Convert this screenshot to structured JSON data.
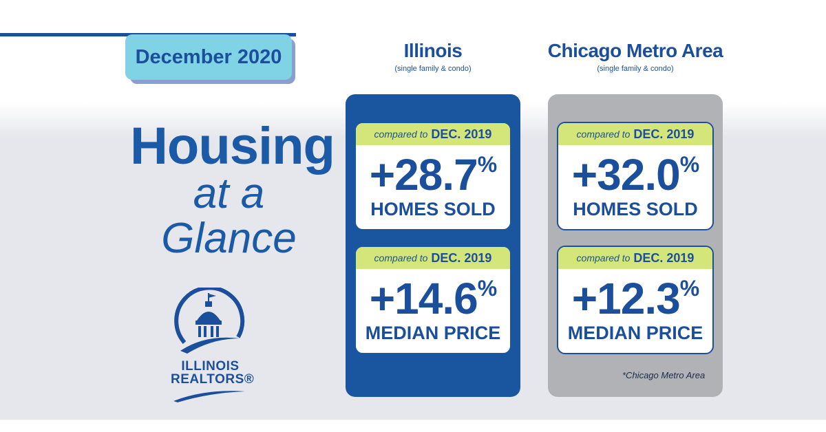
{
  "date_label": "December 2020",
  "hero": {
    "line1": "Housing",
    "line2": "at a",
    "line3": "Glance"
  },
  "logo": {
    "line1": "ILLINOIS",
    "line2": "REALTORS®"
  },
  "columns": [
    {
      "name": "Illinois",
      "subtitle": "(single family & condo)",
      "cards": [
        {
          "compare_label": "compared to",
          "compare_period": "DEC. 2019",
          "value": "+28.7",
          "unit": "%",
          "metric": "HOMES SOLD"
        },
        {
          "compare_label": "compared to",
          "compare_period": "DEC. 2019",
          "value": "+14.6",
          "unit": "%",
          "metric": "MEDIAN PRICE"
        }
      ]
    },
    {
      "name": "Chicago Metro Area",
      "subtitle": "(single family & condo)",
      "cards": [
        {
          "compare_label": "compared to",
          "compare_period": "DEC. 2019",
          "value": "+32.0",
          "unit": "%",
          "metric": "HOMES SOLD"
        },
        {
          "compare_label": "compared to",
          "compare_period": "DEC. 2019",
          "value": "+12.3",
          "unit": "%",
          "metric": "MEDIAN PRICE"
        }
      ],
      "footnote": "*Chicago Metro Area"
    }
  ],
  "colors": {
    "brand_blue": "#1b4f9c",
    "illinois_panel": "#1a56a0",
    "chicago_panel": "#b1b2b6",
    "card_header": "#d4e67a",
    "date_tab": "#80d3e5"
  }
}
